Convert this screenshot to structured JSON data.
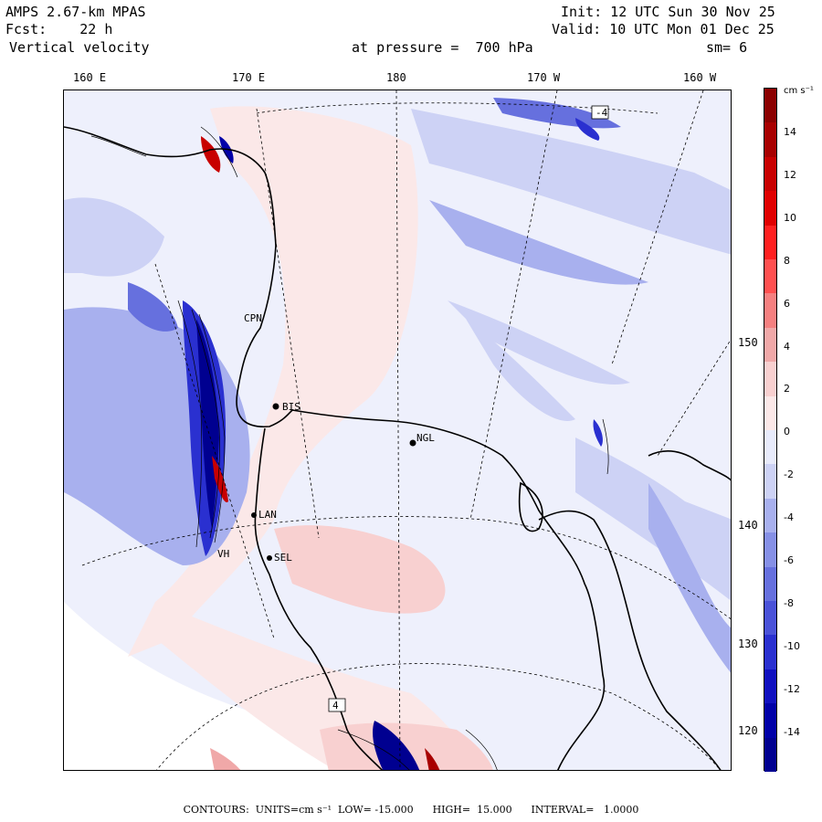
{
  "header": {
    "model": "AMPS 2.67-km MPAS",
    "forecast": "Fcst:    22 h",
    "field": "Vertical velocity",
    "init": "Init: 12 UTC Sun 30 Nov 25",
    "valid": "Valid: 10 UTC Mon 01 Dec 25",
    "level": "at pressure =  700 hPa",
    "smoothing": "sm= 6"
  },
  "longitude_labels": [
    "160 E",
    "170 E",
    "180",
    "170 W",
    "160 W"
  ],
  "latitude_labels": [
    "150 W",
    "140 W",
    "130 W",
    "120 W"
  ],
  "stations": [
    {
      "label": "CPN"
    },
    {
      "label": "BIS"
    },
    {
      "label": "NGL"
    },
    {
      "label": "LAN"
    },
    {
      "label": "SEL"
    },
    {
      "label": "VH"
    }
  ],
  "field_labels": [
    "4",
    "-4"
  ],
  "colorbar": {
    "units": "cm s⁻¹",
    "ticks": [
      "14",
      "12",
      "10",
      "8",
      "6",
      "4",
      "2",
      "0",
      "-2",
      "-4",
      "-6",
      "-8",
      "-10",
      "-12",
      "-14"
    ],
    "colors": [
      "#8b0000",
      "#a80000",
      "#c80000",
      "#e00000",
      "#ff2020",
      "#ff5050",
      "#f58080",
      "#f0a8a8",
      "#f8d0d0",
      "#fbe8e8",
      "#e8ebfb",
      "#cdd2f5",
      "#a8b0ee",
      "#8690e6",
      "#6670de",
      "#4a52d8",
      "#2a30d0",
      "#1010c0",
      "#0000a8",
      "#000090"
    ],
    "low_color": "#8b0000",
    "high_color": "#000090"
  },
  "footer": {
    "contours": "CONTOURS:  UNITS=cm s⁻¹  LOW= -15.000      HIGH=  15.000      INTERVAL=   1.0000"
  }
}
